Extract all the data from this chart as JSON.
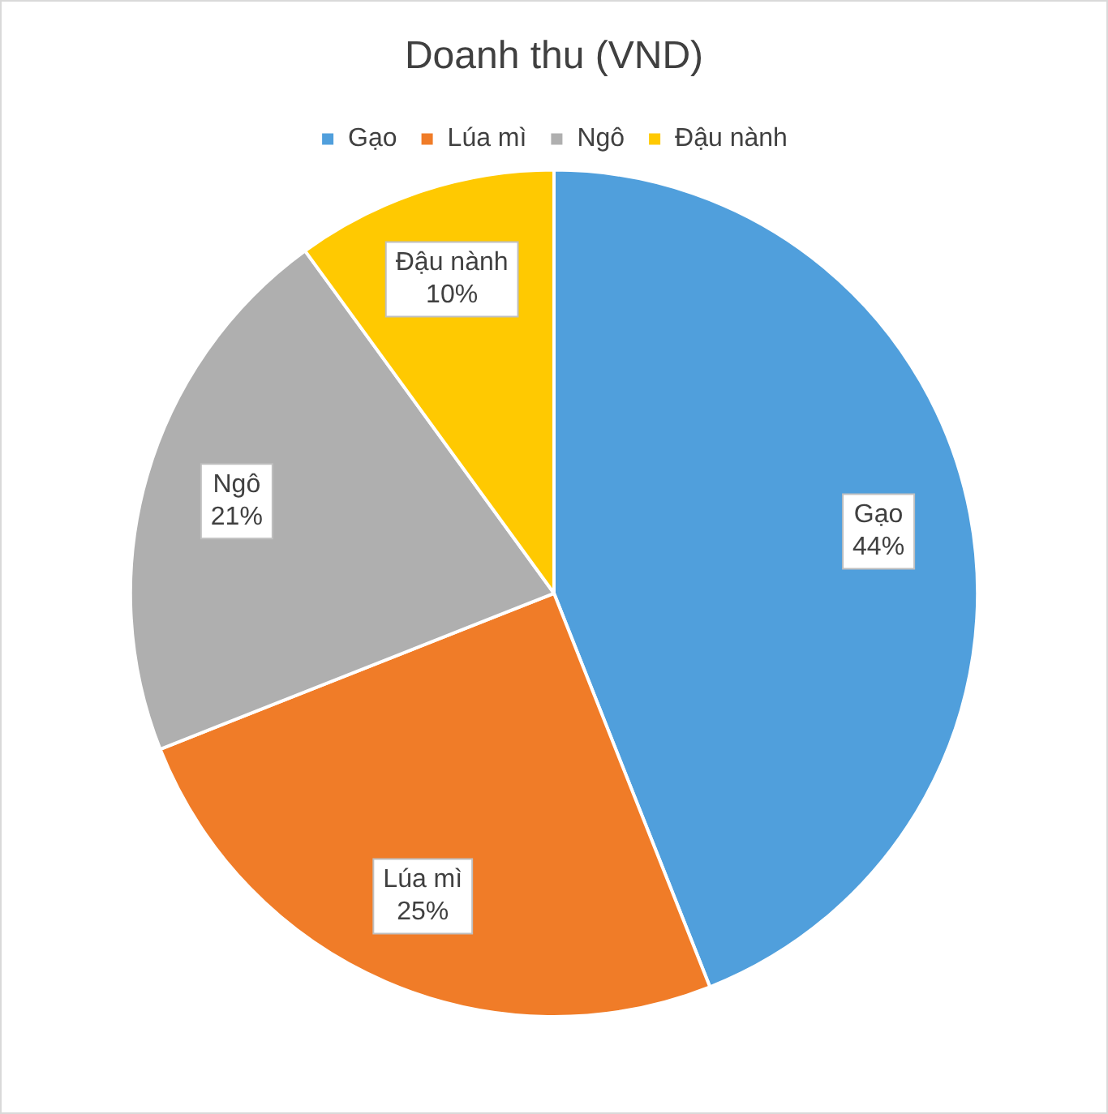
{
  "chart_data": {
    "type": "pie",
    "title": "Doanh thu (VND)",
    "categories": [
      "Gạo",
      "Lúa mì",
      "Ngô",
      "Đậu nành"
    ],
    "values": [
      44,
      25,
      21,
      10
    ],
    "value_labels": [
      "44%",
      "25%",
      "21%",
      "10%"
    ],
    "colors": [
      "#509fdc",
      "#f07c28",
      "#afafaf",
      "#ffc901"
    ],
    "legend": "top"
  }
}
